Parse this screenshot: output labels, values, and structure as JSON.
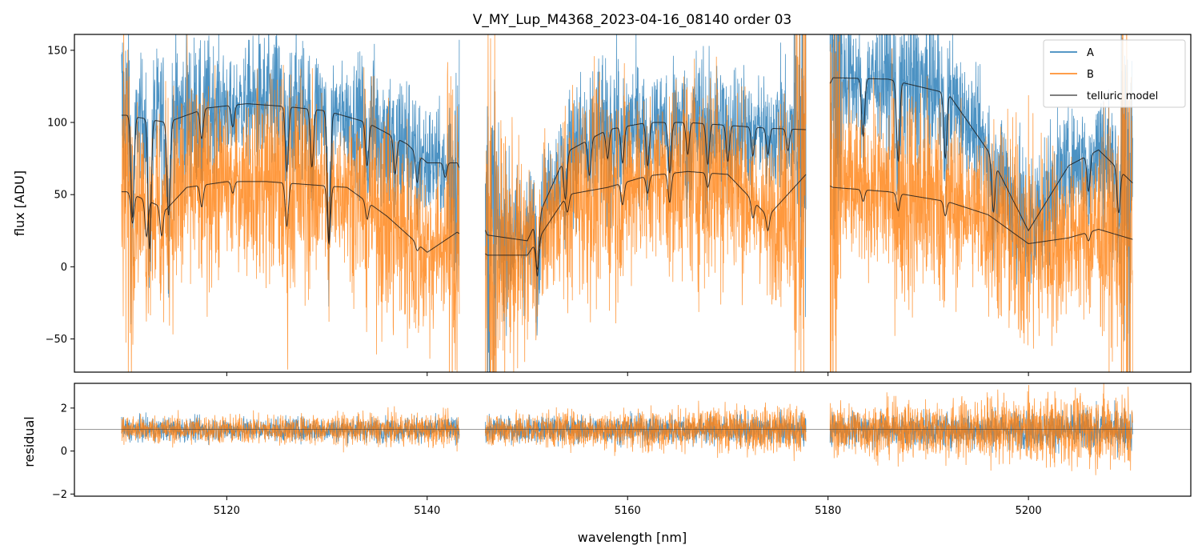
{
  "chart_data": {
    "type": "line",
    "title": "V_MY_Lup_M4368_2023-04-16_08140  order 03",
    "xlabel": "wavelength [nm]",
    "xlim": [
      5104.8,
      5216.2
    ],
    "x_ticks": [
      5120,
      5140,
      5160,
      5180,
      5200
    ],
    "x_tick_labels": [
      "5120",
      "5140",
      "5160",
      "5180",
      "5200"
    ],
    "segments": [
      [
        5109.5,
        5143.2
      ],
      [
        5145.8,
        5177.8
      ],
      [
        5180.2,
        5210.4
      ]
    ],
    "colors": {
      "A": "#1f77b4",
      "B": "#ff7f0e",
      "model": "#1a1a1a"
    },
    "legend": {
      "position": "top-right",
      "entries": [
        {
          "label": "A",
          "color": "#1f77b4"
        },
        {
          "label": "B",
          "color": "#ff7f0e"
        },
        {
          "label": "telluric model",
          "color": "#555555"
        }
      ]
    },
    "top_panel": {
      "ylabel": "flux [ADU]",
      "ylim": [
        -73,
        161
      ],
      "y_ticks": [
        -50,
        0,
        50,
        100,
        150
      ],
      "y_tick_labels": [
        "−50",
        "0",
        "50",
        "100",
        "150"
      ],
      "series": [
        {
          "name": "A",
          "kind": "noisy",
          "noise": 22,
          "model": "upper"
        },
        {
          "name": "B",
          "kind": "noisy",
          "noise": 32,
          "model": "lower"
        }
      ],
      "model_upper_envelope": [
        [
          5110,
          105
        ],
        [
          5114,
          100
        ],
        [
          5118,
          110
        ],
        [
          5122,
          113
        ],
        [
          5126,
          111
        ],
        [
          5130,
          108
        ],
        [
          5134,
          100
        ],
        [
          5138,
          85
        ],
        [
          5140,
          72
        ],
        [
          5143,
          72
        ],
        [
          5146,
          22
        ],
        [
          5150,
          18
        ],
        [
          5154,
          80
        ],
        [
          5158,
          95
        ],
        [
          5162,
          100
        ],
        [
          5166,
          100
        ],
        [
          5170,
          98
        ],
        [
          5174,
          96
        ],
        [
          5177.8,
          95
        ],
        [
          5180.5,
          131
        ],
        [
          5186,
          130
        ],
        [
          5192,
          120
        ],
        [
          5196,
          80
        ],
        [
          5200,
          25
        ],
        [
          5204,
          70
        ],
        [
          5207,
          81
        ],
        [
          5210.4,
          58
        ]
      ],
      "model_upper_lines": [
        [
          5110.6,
          70
        ],
        [
          5112.3,
          90
        ],
        [
          5114.2,
          65
        ],
        [
          5117.5,
          20
        ],
        [
          5120.6,
          15
        ],
        [
          5126,
          45
        ],
        [
          5128.5,
          40
        ],
        [
          5130.2,
          90
        ],
        [
          5134,
          30
        ],
        [
          5136.8,
          25
        ],
        [
          5139,
          20
        ],
        [
          5141.8,
          10
        ],
        [
          5151,
          40
        ],
        [
          5153.8,
          30
        ],
        [
          5156.2,
          25
        ],
        [
          5158,
          20
        ],
        [
          5159.5,
          25
        ],
        [
          5162,
          30
        ],
        [
          5164.2,
          35
        ],
        [
          5166,
          22
        ],
        [
          5168,
          28
        ],
        [
          5170,
          25
        ],
        [
          5172.5,
          20
        ],
        [
          5174,
          18
        ],
        [
          5176,
          15
        ],
        [
          5183.5,
          40
        ],
        [
          5187,
          55
        ],
        [
          5191.7,
          45
        ],
        [
          5196.5,
          35
        ],
        [
          5206,
          25
        ],
        [
          5209,
          30
        ]
      ],
      "model_lower_envelope": [
        [
          5110,
          52
        ],
        [
          5114,
          40
        ],
        [
          5116,
          55
        ],
        [
          5120,
          59
        ],
        [
          5124,
          59
        ],
        [
          5128,
          57
        ],
        [
          5132,
          55
        ],
        [
          5136,
          35
        ],
        [
          5140,
          10
        ],
        [
          5143,
          24
        ],
        [
          5146,
          8
        ],
        [
          5150,
          8
        ],
        [
          5154,
          50
        ],
        [
          5158,
          55
        ],
        [
          5162,
          63
        ],
        [
          5166,
          66
        ],
        [
          5170,
          64
        ],
        [
          5174,
          35
        ],
        [
          5177.8,
          64
        ],
        [
          5180.5,
          55
        ],
        [
          5186,
          52
        ],
        [
          5192,
          45
        ],
        [
          5196,
          36
        ],
        [
          5200,
          16
        ],
        [
          5204,
          20
        ],
        [
          5207,
          26
        ],
        [
          5210.4,
          19
        ]
      ],
      "model_lower_lines": [
        [
          5110.6,
          20
        ],
        [
          5112,
          25
        ],
        [
          5113.5,
          20
        ],
        [
          5117.5,
          15
        ],
        [
          5120.6,
          8
        ],
        [
          5126,
          30
        ],
        [
          5130.2,
          40
        ],
        [
          5134,
          12
        ],
        [
          5139,
          5
        ],
        [
          5151,
          20
        ],
        [
          5154,
          12
        ],
        [
          5159.5,
          15
        ],
        [
          5162,
          12
        ],
        [
          5164.2,
          20
        ],
        [
          5168,
          10
        ],
        [
          5172.5,
          12
        ],
        [
          5174,
          10
        ],
        [
          5183.5,
          8
        ],
        [
          5187,
          12
        ],
        [
          5191.7,
          10
        ],
        [
          5206,
          6
        ]
      ]
    },
    "bottom_panel": {
      "ylabel": "residual",
      "ylim": [
        -2.1,
        3.15
      ],
      "y_ticks": [
        -2,
        0,
        2
      ],
      "y_tick_labels": [
        "−2",
        "0",
        "2"
      ],
      "reference_line": 1.0,
      "series": [
        {
          "name": "A",
          "kind": "residual",
          "spread_left": 0.6,
          "spread_right": 1.1
        },
        {
          "name": "B",
          "kind": "residual",
          "spread_left": 0.75,
          "spread_right": 2.0
        }
      ]
    }
  }
}
